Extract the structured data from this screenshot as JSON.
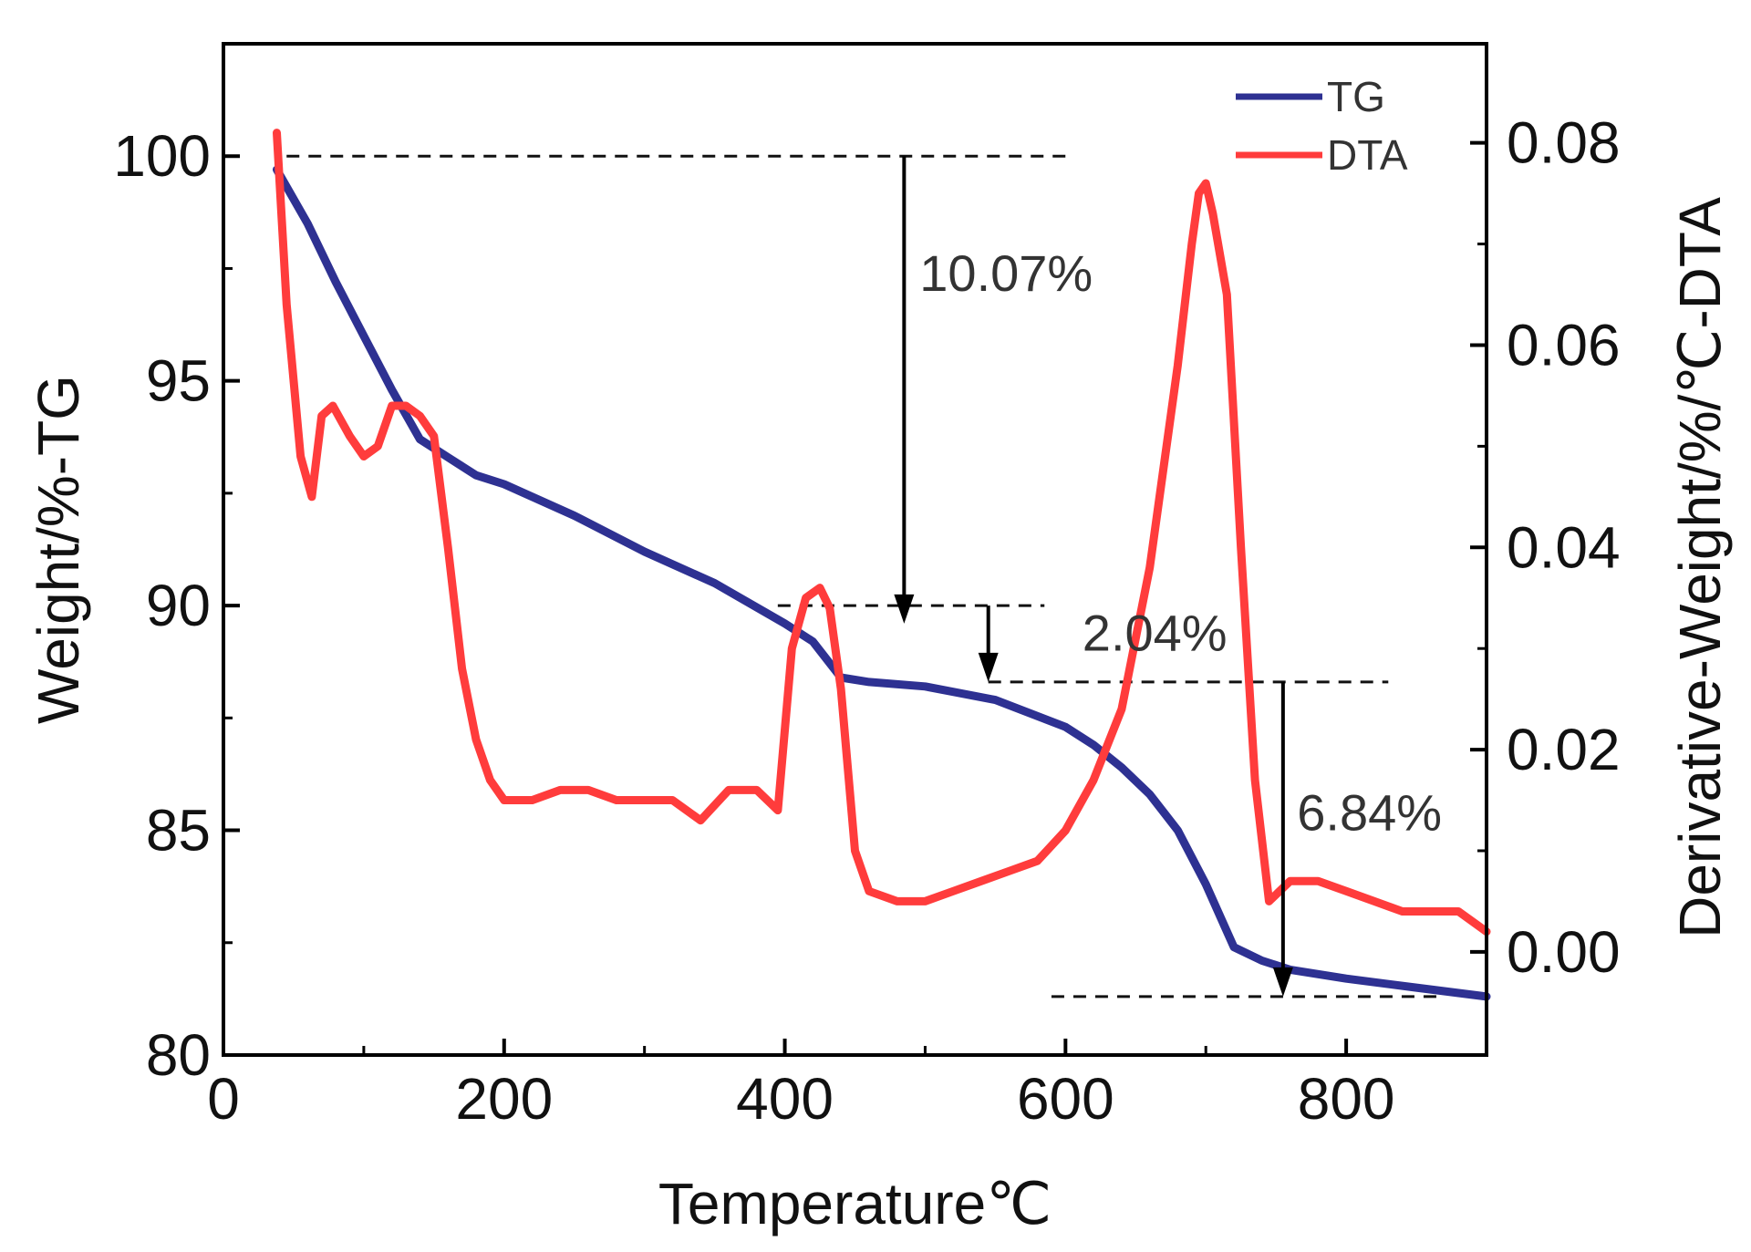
{
  "chart_data": {
    "type": "line",
    "title": "",
    "xlabel": "Temperature℃",
    "ylabel_left": "Weight/%-TG",
    "ylabel_right": "Derivative-Weight/%/℃-DTA",
    "xlim": [
      0,
      900
    ],
    "ylim_left": [
      80,
      102.5
    ],
    "ylim_right": [
      -0.0102,
      0.0898
    ],
    "x_ticks": [
      0,
      200,
      400,
      600,
      800
    ],
    "x_tick_labels": [
      "0",
      "200",
      "400",
      "600",
      "800"
    ],
    "y_left_ticks": [
      80,
      85,
      90,
      95,
      100
    ],
    "y_left_tick_labels": [
      "80",
      "85",
      "90",
      "95",
      "100"
    ],
    "y_right_ticks": [
      0.0,
      0.02,
      0.04,
      0.06,
      0.08
    ],
    "y_right_tick_labels": [
      "0.00",
      "0.02",
      "0.04",
      "0.06",
      "0.08"
    ],
    "legend": {
      "position": "top-right",
      "entries": [
        "TG",
        "DTA"
      ]
    },
    "series": [
      {
        "name": "TG",
        "axis": "left",
        "color": "#2e3192",
        "x": [
          38,
          60,
          80,
          100,
          120,
          140,
          160,
          180,
          200,
          250,
          300,
          350,
          400,
          420,
          440,
          460,
          500,
          550,
          600,
          620,
          640,
          660,
          680,
          700,
          720,
          740,
          760,
          800,
          850,
          900
        ],
        "y": [
          99.7,
          98.5,
          97.2,
          96.0,
          94.8,
          93.7,
          93.3,
          92.9,
          92.7,
          92.0,
          91.2,
          90.5,
          89.6,
          89.2,
          88.4,
          88.3,
          88.2,
          87.9,
          87.3,
          86.9,
          86.4,
          85.8,
          85.0,
          83.8,
          82.4,
          82.1,
          81.9,
          81.7,
          81.5,
          81.3
        ]
      },
      {
        "name": "DTA",
        "axis": "right",
        "color": "#ff3c3c",
        "x": [
          38,
          45,
          55,
          63,
          70,
          78,
          90,
          100,
          110,
          120,
          130,
          140,
          150,
          160,
          170,
          180,
          190,
          200,
          220,
          240,
          260,
          280,
          300,
          320,
          340,
          360,
          380,
          395,
          405,
          415,
          425,
          432,
          440,
          450,
          460,
          480,
          500,
          520,
          540,
          560,
          580,
          600,
          620,
          640,
          660,
          680,
          690,
          695,
          700,
          705,
          715,
          725,
          735,
          745,
          760,
          780,
          800,
          820,
          840,
          860,
          880,
          900
        ],
        "y": [
          0.081,
          0.064,
          0.049,
          0.045,
          0.053,
          0.054,
          0.051,
          0.049,
          0.05,
          0.054,
          0.054,
          0.053,
          0.051,
          0.04,
          0.028,
          0.021,
          0.017,
          0.015,
          0.015,
          0.016,
          0.016,
          0.015,
          0.015,
          0.015,
          0.013,
          0.016,
          0.016,
          0.014,
          0.03,
          0.035,
          0.036,
          0.034,
          0.026,
          0.01,
          0.006,
          0.005,
          0.005,
          0.006,
          0.007,
          0.008,
          0.009,
          0.012,
          0.017,
          0.024,
          0.038,
          0.058,
          0.07,
          0.075,
          0.076,
          0.073,
          0.065,
          0.04,
          0.017,
          0.005,
          0.007,
          0.007,
          0.006,
          0.005,
          0.004,
          0.004,
          0.004,
          0.002
        ]
      }
    ],
    "annotations": [
      {
        "text": "10.07%",
        "x": 496,
        "y": 97.0,
        "axis": "left"
      },
      {
        "text": "2.04%",
        "x": 612,
        "y": 89.0,
        "axis": "left"
      },
      {
        "text": "6.84%",
        "x": 765,
        "y": 85.0,
        "axis": "left"
      }
    ],
    "reference_lines": [
      {
        "y": 100.0,
        "x1": 45,
        "x2": 600
      },
      {
        "y": 90.0,
        "x1": 395,
        "x2": 585
      },
      {
        "y": 88.3,
        "x1": 545,
        "x2": 830
      },
      {
        "y": 81.3,
        "x1": 590,
        "x2": 870
      }
    ],
    "step_arrows": [
      {
        "x": 485,
        "from": 100.0,
        "to": 89.6
      },
      {
        "x": 545,
        "from": 90.0,
        "to": 88.3
      },
      {
        "x": 755,
        "from": 88.3,
        "to": 81.3
      }
    ]
  }
}
